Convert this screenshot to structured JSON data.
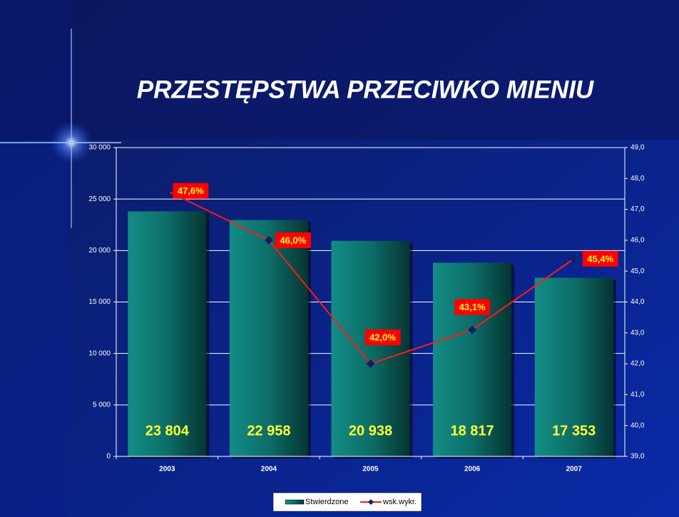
{
  "chart_data": {
    "type": "bar-line",
    "title": "PRZESTĘPSTWA PRZECIWKO MIENIU",
    "categories": [
      "2003",
      "2004",
      "2005",
      "2006",
      "2007"
    ],
    "series": [
      {
        "name": "Stwierdzone",
        "type": "bar",
        "color": "#0e7f78",
        "values": [
          23804,
          22958,
          20938,
          18817,
          17353
        ],
        "value_labels": [
          "23 804",
          "22 958",
          "20 938",
          "18 817",
          "17 353"
        ]
      },
      {
        "name": "wsk.wykr.",
        "type": "line",
        "axis": "y2",
        "color": "#ff1a1a",
        "marker_color": "#10206a",
        "values": [
          47.6,
          46.0,
          42.0,
          43.1,
          45.4
        ],
        "value_labels": [
          "47,6%",
          "46,0%",
          "42,0%",
          "43,1%",
          "45,4%"
        ]
      }
    ],
    "ylim": [
      0,
      30000
    ],
    "yticks": [
      {
        "value": 0,
        "label": "0"
      },
      {
        "value": 5000,
        "label": "5 000"
      },
      {
        "value": 10000,
        "label": "10 000"
      },
      {
        "value": 15000,
        "label": "15 000"
      },
      {
        "value": 20000,
        "label": "20 000"
      },
      {
        "value": 25000,
        "label": "25 000"
      },
      {
        "value": 30000,
        "label": "30 000"
      }
    ],
    "y2lim": [
      39,
      49
    ],
    "y2ticks": [
      {
        "value": 39,
        "label": "39,0"
      },
      {
        "value": 40,
        "label": "40,0"
      },
      {
        "value": 41,
        "label": "41,0"
      },
      {
        "value": 42,
        "label": "42,0"
      },
      {
        "value": 43,
        "label": "43,0"
      },
      {
        "value": 44,
        "label": "44,0"
      },
      {
        "value": 45,
        "label": "45,0"
      },
      {
        "value": 46,
        "label": "46,0"
      },
      {
        "value": 47,
        "label": "47,0"
      },
      {
        "value": 48,
        "label": "48,0"
      },
      {
        "value": 49,
        "label": "49,0"
      }
    ],
    "grid": true,
    "legend": "bottom"
  }
}
